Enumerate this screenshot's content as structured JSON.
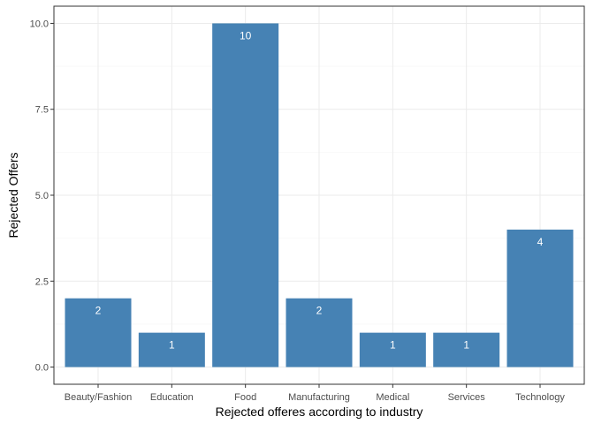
{
  "chart_data": {
    "type": "bar",
    "categories": [
      "Beauty/Fashion",
      "Education",
      "Food",
      "Manufacturing",
      "Medical",
      "Services",
      "Technology"
    ],
    "values": [
      2,
      1,
      10,
      2,
      1,
      1,
      4
    ],
    "data_labels": [
      "2",
      "1",
      "10",
      "2",
      "1",
      "1",
      "4"
    ],
    "title": "",
    "xlabel": "Rejected offeres according to industry",
    "ylabel": "Rejected Offers",
    "ylim": [
      -0.5,
      10.5
    ],
    "yticks": [
      0,
      2.5,
      5,
      7.5,
      10
    ],
    "ytick_labels": [
      "0.0",
      "2.5",
      "5.0",
      "7.5",
      "10.0"
    ],
    "grid": true,
    "colors": {
      "bar": "#4682b4",
      "grid_major": "#ebebeb",
      "grid_minor": "#f5f5f5",
      "panel_border": "#333333"
    }
  }
}
